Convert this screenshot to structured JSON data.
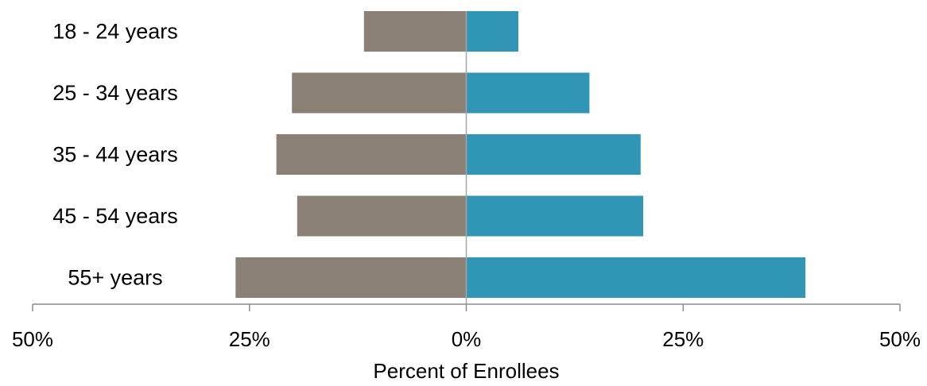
{
  "chart_data": {
    "type": "bar",
    "orientation": "horizontal",
    "diverging": true,
    "categories": [
      "18 - 24 years",
      "25 - 34 years",
      "35 - 44 years",
      "45 - 54 years",
      "55+ years"
    ],
    "series": [
      {
        "color": "#8b8076",
        "values": [
          -11.8,
          -20.1,
          -21.9,
          -19.5,
          -26.6
        ]
      },
      {
        "color": "#3195b5",
        "values": [
          6.0,
          14.2,
          20.1,
          20.4,
          39.1
        ]
      }
    ],
    "xlim": [
      -50,
      50
    ],
    "xticks": [
      -50,
      -25,
      0,
      25,
      50
    ],
    "xtick_labels": [
      "50%",
      "25%",
      "0%",
      "25%",
      "50%"
    ],
    "xlabel": "Percent of Enrollees",
    "ylabel": "",
    "title": "",
    "grid": false,
    "legend": "none"
  }
}
